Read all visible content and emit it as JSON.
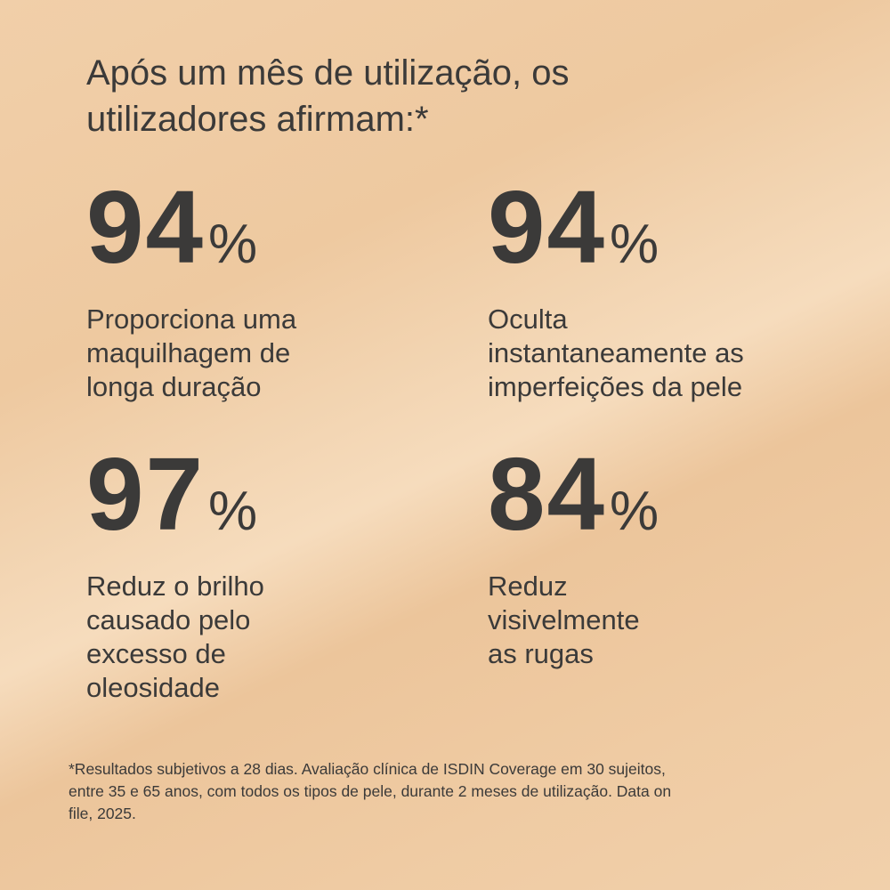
{
  "heading": {
    "lines": [
      "Após um mês de utilização, os",
      "utilizadores afirmam:*"
    ]
  },
  "stats": [
    {
      "value": 94,
      "unit": "%",
      "lines": [
        "Proporciona uma",
        "maquilhagem de",
        "longa duração"
      ]
    },
    {
      "value": 94,
      "unit": "%",
      "lines": [
        "Oculta",
        "instantaneamente as",
        "imperfeições da pele"
      ]
    },
    {
      "value": 97,
      "unit": "%",
      "lines": [
        "Reduz o brilho",
        "causado pelo",
        "excesso de",
        "oleosidade"
      ]
    },
    {
      "value": 84,
      "unit": "%",
      "lines": [
        "Reduz",
        "visivelmente",
        "as rugas"
      ]
    }
  ],
  "footnote": {
    "lines": [
      "*Resultados subjetivos a 28 dias. Avaliação clínica de ISDIN Coverage em 30 sujeitos,",
      "entre 35 e 65 anos, com todos os tipos de pele, durante 2 meses de utilização. Data on",
      "file, 2025."
    ]
  }
}
